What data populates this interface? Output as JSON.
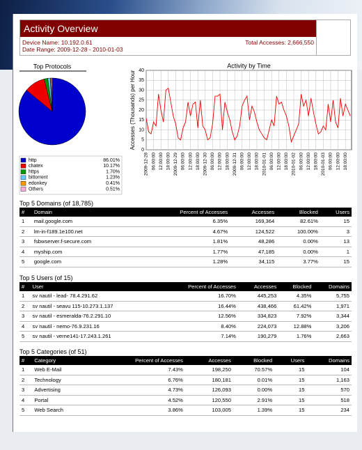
{
  "header": {
    "title": "Activity Overview",
    "device": "Device Name: 10.192.0.61",
    "range": "Date Range: 2009-12-28 - 2010-01-03",
    "total": "Total Accesses: 2,666,550"
  },
  "chart_data": [
    {
      "type": "pie",
      "title": "Top Protocols",
      "categories": [
        "http",
        "chatex",
        "https",
        "bittorrent",
        "edonkey",
        "Others"
      ],
      "values": [
        86.01,
        10.17,
        1.7,
        1.23,
        0.41,
        0.51
      ],
      "value_labels": [
        "86.01%",
        "10.17%",
        "1.70%",
        "1.23%",
        "0.41%",
        "0.51%"
      ],
      "colors": [
        "#0000cc",
        "#ee0000",
        "#009900",
        "#66ccff",
        "#ff9900",
        "#ffaadd"
      ]
    },
    {
      "type": "line",
      "title": "Activity by Time",
      "y_label": "Accesses (Thousands) per Hour",
      "x": [
        0,
        2,
        4,
        6,
        8,
        10,
        12,
        14,
        16,
        18,
        20,
        22,
        24,
        26,
        28,
        30,
        32,
        34,
        36,
        38,
        40,
        42,
        44,
        46,
        48,
        50,
        52,
        54,
        56,
        58,
        60,
        62,
        64,
        66,
        68,
        70,
        72,
        74,
        76,
        78,
        80,
        82,
        84,
        86,
        88,
        90,
        92,
        94,
        96,
        98,
        100,
        102,
        104,
        106,
        108,
        110,
        112,
        114,
        116,
        118,
        120,
        122,
        124,
        126,
        128,
        130,
        132,
        134,
        136,
        138,
        140,
        142,
        144,
        146,
        148,
        150,
        152,
        154,
        156,
        158,
        160,
        162,
        164,
        166
      ],
      "values": [
        16,
        9,
        8,
        14,
        12,
        28,
        20,
        14,
        30,
        31,
        24,
        17,
        13,
        6,
        5,
        11,
        14,
        24,
        17,
        23,
        24,
        11,
        25,
        12,
        10,
        5,
        6,
        13,
        27,
        27,
        28,
        10,
        24,
        19,
        15,
        9,
        5,
        7,
        12,
        22,
        25,
        27,
        15,
        22,
        19,
        14,
        10,
        8,
        6,
        5,
        10,
        15,
        12,
        27,
        23,
        24,
        20,
        17,
        12,
        4,
        7,
        10,
        13,
        28,
        22,
        25,
        17,
        26,
        19,
        13,
        8,
        9,
        12,
        10,
        23,
        14,
        25,
        14,
        11,
        26,
        17,
        23,
        20,
        17
      ],
      "color": "#ee0000",
      "xlim": [
        0,
        167
      ],
      "ylim": [
        0,
        40
      ],
      "yticks": [
        0,
        5,
        10,
        15,
        20,
        25,
        30,
        35,
        40
      ],
      "grid": true,
      "xticks": [
        {
          "value": 0,
          "label": "2009-12-28"
        },
        {
          "value": 6,
          "label": "06:00:00"
        },
        {
          "value": 12,
          "label": "12:00:00"
        },
        {
          "value": 18,
          "label": "18:00:00"
        },
        {
          "value": 24,
          "label": "2009-12-29"
        },
        {
          "value": 30,
          "label": "06:00:00"
        },
        {
          "value": 36,
          "label": "12:00:00"
        },
        {
          "value": 42,
          "label": "18:00:00"
        },
        {
          "value": 48,
          "label": "2009-12-30"
        },
        {
          "value": 54,
          "label": "06:00:00"
        },
        {
          "value": 60,
          "label": "12:00:00"
        },
        {
          "value": 66,
          "label": "18:00:00"
        },
        {
          "value": 72,
          "label": "2009-12-31"
        },
        {
          "value": 78,
          "label": "06:00:00"
        },
        {
          "value": 84,
          "label": "12:00:00"
        },
        {
          "value": 90,
          "label": "18:00:00"
        },
        {
          "value": 96,
          "label": "2010-01-01"
        },
        {
          "value": 102,
          "label": "06:00:00"
        },
        {
          "value": 108,
          "label": "12:00:00"
        },
        {
          "value": 114,
          "label": "18:00:00"
        },
        {
          "value": 120,
          "label": "2010-01-02"
        },
        {
          "value": 126,
          "label": "06:00:00"
        },
        {
          "value": 132,
          "label": "12:00:00"
        },
        {
          "value": 138,
          "label": "18:00:00"
        },
        {
          "value": 144,
          "label": "2010-01-03"
        },
        {
          "value": 150,
          "label": "06:00:00"
        },
        {
          "value": 156,
          "label": "12:00:00"
        },
        {
          "value": 162,
          "label": "18:00:00"
        }
      ]
    }
  ],
  "tables": [
    {
      "title": "Top 5 Domains (of 18,785)",
      "columns": [
        "#",
        "Domain",
        "Percent of Accesses",
        "Accesses",
        "Blocked",
        "Users"
      ],
      "rows": [
        [
          "1",
          "mail.google.com",
          "6.35%",
          "169,364",
          "82.61%",
          "15"
        ],
        [
          "2",
          "lm-in-f189.1e100.net",
          "4.67%",
          "124,522",
          "100.00%",
          "3"
        ],
        [
          "3",
          "fsbwserver.f-secure.com",
          "1.81%",
          "48,286",
          "0.00%",
          "13"
        ],
        [
          "4",
          "myship.com",
          "1.77%",
          "47,185",
          "0.00%",
          "1"
        ],
        [
          "5",
          "google.com",
          "1.28%",
          "34,115",
          "3.77%",
          "15"
        ]
      ]
    },
    {
      "title": "Top 5 Users (of 15)",
      "columns": [
        "#",
        "User",
        "Percent of Accesses",
        "Accesses",
        "Blocked",
        "Domains"
      ],
      "rows": [
        [
          "1",
          "sv nautil - lead- 78.4.291.62",
          "16.70%",
          "445,253",
          "4.35%",
          "5,755"
        ],
        [
          "2",
          "sv nautil - seavu 115-10.273.1.137",
          "16.44%",
          "438,466",
          "61.42%",
          "1,971"
        ],
        [
          "3",
          "sv nautil - esmeralda-76.2.291.10",
          "12.56%",
          "334,823",
          "7.92%",
          "3,344"
        ],
        [
          "4",
          "sv nautil - nemo-76.9.231.16",
          "8.40%",
          "224,073",
          "12.88%",
          "3,206"
        ],
        [
          "5",
          "sv nautil - verne141-17.243.1.261",
          "7.14%",
          "190,279",
          "1.76%",
          "2,663"
        ]
      ]
    },
    {
      "title": "Top 5 Categories (of 51)",
      "columns": [
        "#",
        "Category",
        "Percent of Accesses",
        "Accesses",
        "Blocked",
        "Users",
        "Domains"
      ],
      "rows": [
        [
          "1",
          "Web E-Mail",
          "7.43%",
          "198,250",
          "70.57%",
          "15",
          "104"
        ],
        [
          "2",
          "Technology",
          "6.76%",
          "180,181",
          "0.01%",
          "15",
          "1,163"
        ],
        [
          "3",
          "Advertising",
          "4.73%",
          "126,093",
          "0.00%",
          "15",
          "570"
        ],
        [
          "4",
          "Portal",
          "4.52%",
          "120,550",
          "2.91%",
          "15",
          "518"
        ],
        [
          "5",
          "Web Search",
          "3.86%",
          "103,005",
          "1.39%",
          "15",
          "234"
        ]
      ]
    }
  ]
}
